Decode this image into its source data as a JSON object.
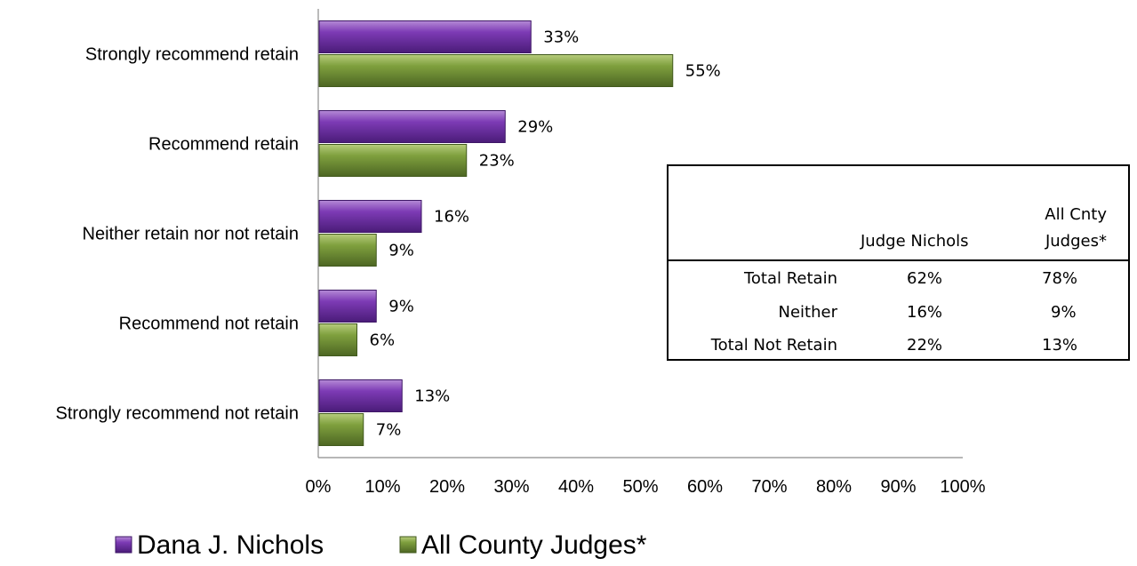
{
  "chart_data": {
    "type": "bar",
    "orientation": "horizontal",
    "categories": [
      "Strongly recommend retain",
      "Recommend retain",
      "Neither retain nor not retain",
      "Recommend not retain",
      "Strongly recommend not retain"
    ],
    "series": [
      {
        "name": "Dana J. Nichols",
        "values": [
          33,
          29,
          16,
          9,
          13
        ],
        "labels": [
          "33%",
          "29%",
          "16%",
          "9%",
          "13%"
        ],
        "color": "#7030A0"
      },
      {
        "name": "All County Judges*",
        "values": [
          55,
          23,
          9,
          6,
          7
        ],
        "labels": [
          "55%",
          "23%",
          "9%",
          "6%",
          "7%"
        ],
        "color": "#77933C"
      }
    ],
    "xlim": [
      0,
      100
    ],
    "x_ticks": [
      "0%",
      "10%",
      "20%",
      "30%",
      "40%",
      "50%",
      "60%",
      "70%",
      "80%",
      "90%",
      "100%"
    ],
    "grid": false,
    "legend_position": "bottom-left"
  },
  "table": {
    "headers": [
      "Judge Nichols",
      "All Cnty",
      "Judges*"
    ],
    "rows": [
      {
        "label": "Total Retain",
        "nichols": "62%",
        "all": "78%"
      },
      {
        "label": "Neither",
        "nichols": "16%",
        "all": "9%"
      },
      {
        "label": "Total Not Retain",
        "nichols": "22%",
        "all": "13%"
      }
    ]
  }
}
